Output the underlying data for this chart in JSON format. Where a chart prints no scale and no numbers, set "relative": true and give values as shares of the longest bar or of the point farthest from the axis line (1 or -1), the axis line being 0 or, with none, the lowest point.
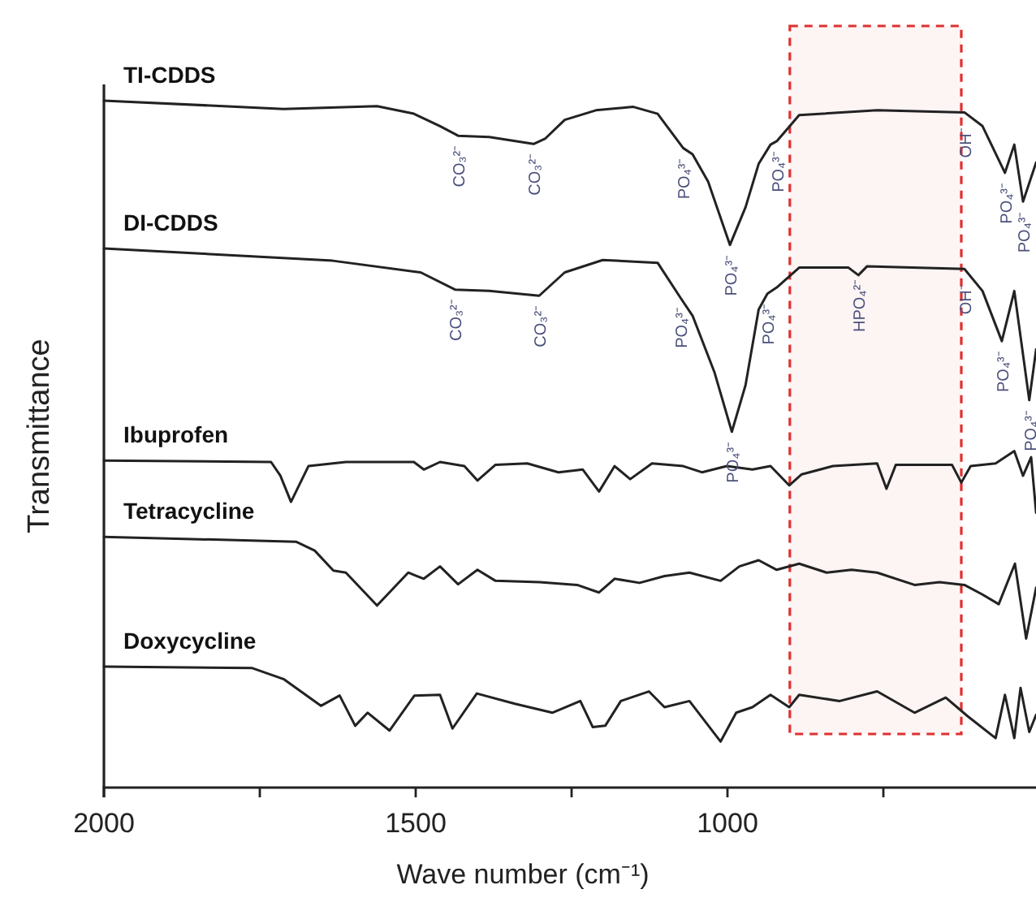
{
  "chart_data": {
    "type": "line",
    "relative": true,
    "xlabel": "Wave number (cm⁻¹)",
    "ylabel": "Transmittance",
    "xlim": [
      2000,
      500
    ],
    "xticks": [
      2000,
      {
        "value": 1750,
        "label": null
      },
      1500,
      {
        "value": 1250,
        "label": null
      },
      1000,
      {
        "value": 750,
        "label": null
      }
    ],
    "line_style": "solid",
    "bands": [
      {
        "axis": "x",
        "from": 900,
        "to": 625,
        "color": "#e03030"
      }
    ],
    "series": [
      {
        "name": "TI-CDDS",
        "color": "#222222",
        "x": [
          2000,
          1712,
          1562,
          1503,
          1461,
          1432,
          1382,
          1311,
          1292,
          1261,
          1211,
          1151,
          1112,
          1071,
          1056,
          1031,
          996,
          971,
          950,
          931,
          921,
          885,
          760,
          620,
          591,
          555,
          540,
          526,
          505
        ],
        "values": [
          1,
          0.988,
          0.992,
          0.981,
          0.963,
          0.949,
          0.947,
          0.937,
          0.945,
          0.972,
          0.986,
          0.991,
          0.981,
          0.931,
          0.922,
          0.882,
          0.79,
          0.845,
          0.908,
          0.936,
          0.941,
          0.979,
          0.986,
          0.983,
          0.963,
          0.895,
          0.936,
          0.853,
          0.91
        ]
      },
      {
        "name": "DI-CDDS",
        "color": "#222222",
        "x": [
          2000,
          1633,
          1492,
          1437,
          1382,
          1302,
          1261,
          1200,
          1112,
          1076,
          1056,
          1021,
          993,
          971,
          950,
          936,
          921,
          885,
          806,
          790,
          776,
          620,
          591,
          560,
          540,
          516,
          505
        ],
        "values": [
          0.785,
          0.767,
          0.75,
          0.725,
          0.723,
          0.716,
          0.75,
          0.768,
          0.764,
          0.714,
          0.687,
          0.605,
          0.518,
          0.586,
          0.696,
          0.719,
          0.728,
          0.757,
          0.757,
          0.746,
          0.759,
          0.755,
          0.723,
          0.65,
          0.723,
          0.564,
          0.638
        ]
      },
      {
        "name": "Ibuprofen",
        "color": "#222222",
        "x": [
          2000,
          1732,
          1717,
          1700,
          1672,
          1612,
          1503,
          1487,
          1461,
          1422,
          1401,
          1372,
          1321,
          1271,
          1232,
          1206,
          1181,
          1156,
          1121,
          1071,
          1041,
          1001,
          960,
          931,
          901,
          881,
          831,
          760,
          745,
          730,
          640,
          625,
          610,
          570,
          540,
          526,
          513,
          505
        ],
        "values": [
          0.476,
          0.474,
          0.454,
          0.416,
          0.468,
          0.474,
          0.474,
          0.463,
          0.474,
          0.468,
          0.447,
          0.47,
          0.472,
          0.459,
          0.463,
          0.431,
          0.468,
          0.449,
          0.472,
          0.468,
          0.459,
          0.468,
          0.463,
          0.468,
          0.44,
          0.456,
          0.468,
          0.472,
          0.435,
          0.47,
          0.47,
          0.444,
          0.468,
          0.472,
          0.49,
          0.454,
          0.481,
          0.4
        ]
      },
      {
        "name": "Tetracycline",
        "color": "#222222",
        "x": [
          2000,
          1692,
          1662,
          1632,
          1612,
          1562,
          1512,
          1487,
          1461,
          1432,
          1401,
          1372,
          1301,
          1241,
          1206,
          1181,
          1141,
          1101,
          1061,
          1011,
          981,
          950,
          921,
          885,
          841,
          801,
          760,
          700,
          660,
          620,
          591,
          565,
          539,
          521,
          505
        ],
        "values": [
          0.365,
          0.358,
          0.345,
          0.316,
          0.313,
          0.265,
          0.313,
          0.304,
          0.322,
          0.296,
          0.317,
          0.301,
          0.299,
          0.295,
          0.284,
          0.304,
          0.298,
          0.308,
          0.313,
          0.301,
          0.322,
          0.331,
          0.317,
          0.326,
          0.313,
          0.317,
          0.313,
          0.295,
          0.299,
          0.295,
          0.281,
          0.267,
          0.326,
          0.217,
          0.291
        ]
      },
      {
        "name": "Doxycycline",
        "color": "#222222",
        "x": [
          2000,
          1762,
          1712,
          1652,
          1622,
          1597,
          1577,
          1542,
          1502,
          1461,
          1441,
          1402,
          1341,
          1281,
          1236,
          1216,
          1196,
          1171,
          1126,
          1101,
          1061,
          1011,
          986,
          960,
          931,
          901,
          885,
          820,
          760,
          700,
          650,
          615,
          570,
          555,
          540,
          530,
          516,
          505
        ],
        "values": [
          0.176,
          0.174,
          0.158,
          0.119,
          0.134,
          0.09,
          0.109,
          0.083,
          0.134,
          0.135,
          0.086,
          0.137,
          0.122,
          0.109,
          0.126,
          0.088,
          0.09,
          0.126,
          0.14,
          0.117,
          0.126,
          0.067,
          0.109,
          0.117,
          0.135,
          0.117,
          0.135,
          0.126,
          0.14,
          0.109,
          0.131,
          0.104,
          0.072,
          0.135,
          0.072,
          0.145,
          0.081,
          0.106
        ]
      }
    ],
    "annotations": [
      {
        "text": "CO₃²⁻",
        "x": 1432,
        "y": 0.949
      },
      {
        "text": "CO₃²⁻",
        "x": 1311,
        "y": 0.937
      },
      {
        "text": "PO₄³⁻",
        "x": 1071,
        "y": 0.931
      },
      {
        "text": "PO₄³⁻",
        "x": 996,
        "y": 0.79
      },
      {
        "text": "PO₄³⁻",
        "x": 921,
        "y": 0.941
      },
      {
        "text": "OH⁻",
        "x": 620,
        "y": 0.983
      },
      {
        "text": "PO₄³⁻",
        "x": 555,
        "y": 0.895
      },
      {
        "text": "PO₄³⁻",
        "x": 526,
        "y": 0.853
      },
      {
        "text": "CO₃²⁻",
        "x": 1437,
        "y": 0.725
      },
      {
        "text": "CO₃²⁻",
        "x": 1302,
        "y": 0.716
      },
      {
        "text": "PO₄³⁻",
        "x": 1076,
        "y": 0.714
      },
      {
        "text": "PO₄³⁻",
        "x": 993,
        "y": 0.518
      },
      {
        "text": "PO₄³⁻",
        "x": 936,
        "y": 0.719
      },
      {
        "text": "HPO₄²⁻",
        "x": 790,
        "y": 0.746
      },
      {
        "text": "OH⁻",
        "x": 620,
        "y": 0.755
      },
      {
        "text": "PO₄³⁻",
        "x": 560,
        "y": 0.65
      },
      {
        "text": "PO₄³⁻",
        "x": 516,
        "y": 0.564
      }
    ]
  }
}
